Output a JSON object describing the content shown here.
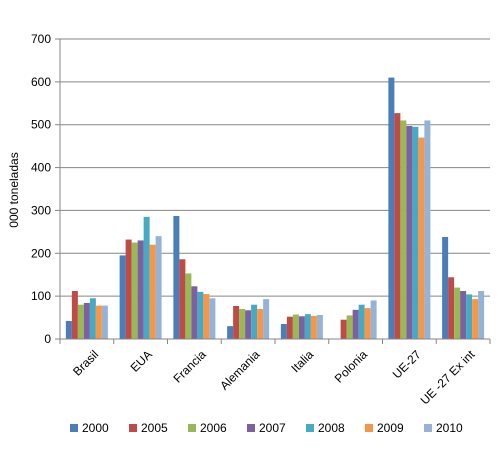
{
  "chart_data": {
    "type": "bar",
    "title": "",
    "xlabel": "",
    "ylabel": "000 toneladas",
    "ylim": [
      0,
      700
    ],
    "yticks": [
      "0",
      "100",
      "200",
      "300",
      "400",
      "500",
      "600",
      "700"
    ],
    "grid": true,
    "legend_position": "bottom",
    "categories": [
      "Brasil",
      "EUA",
      "Francia",
      "Alemania",
      "Italia",
      "Polonia",
      "UE-27",
      "UE -27 Ex int"
    ],
    "series": [
      {
        "name": "2000",
        "color": "#4A7EBB",
        "values": [
          42,
          195,
          287,
          30,
          35,
          0,
          610,
          238
        ]
      },
      {
        "name": "2005",
        "color": "#BE4B48",
        "values": [
          112,
          232,
          186,
          77,
          52,
          45,
          527,
          144
        ]
      },
      {
        "name": "2006",
        "color": "#98B954",
        "values": [
          80,
          225,
          153,
          70,
          57,
          55,
          510,
          120
        ]
      },
      {
        "name": "2007",
        "color": "#7D60A0",
        "values": [
          84,
          230,
          123,
          67,
          53,
          68,
          497,
          112
        ]
      },
      {
        "name": "2008",
        "color": "#46AAC5",
        "values": [
          95,
          285,
          110,
          80,
          58,
          80,
          495,
          104
        ]
      },
      {
        "name": "2009",
        "color": "#F79646",
        "values": [
          78,
          220,
          105,
          70,
          54,
          72,
          470,
          93
        ]
      },
      {
        "name": "2010",
        "color": "#95B3D7",
        "values": [
          78,
          240,
          95,
          93,
          56,
          90,
          510,
          112
        ]
      }
    ]
  }
}
